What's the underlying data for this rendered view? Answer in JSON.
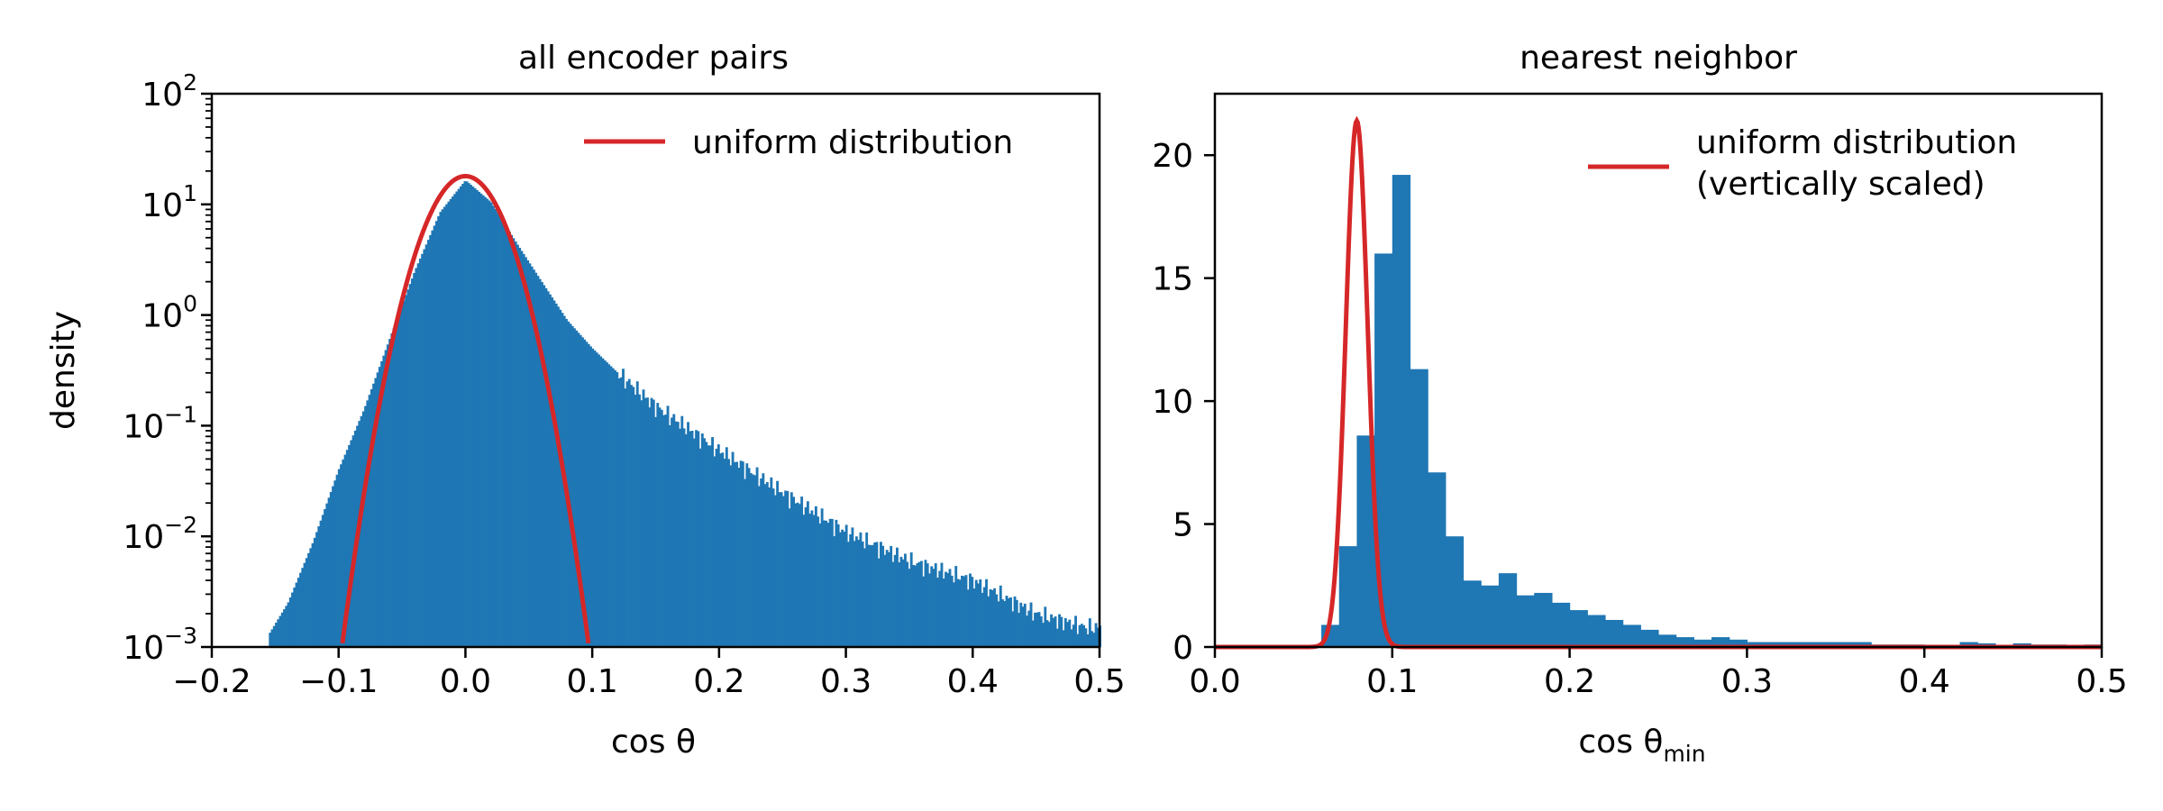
{
  "chart_data": [
    {
      "type": "bar",
      "title": "all encoder pairs",
      "xlabel": "cos θ",
      "ylabel": "density",
      "xlim": [
        -0.2,
        0.5
      ],
      "ylim": [
        0.001,
        100
      ],
      "yscale": "log",
      "x_ticks": [
        "−0.2",
        "−0.1",
        "0.0",
        "0.1",
        "0.2",
        "0.3",
        "0.4",
        "0.5"
      ],
      "y_ticks": [
        {
          "base": "10",
          "exp": "−3"
        },
        {
          "base": "10",
          "exp": "−2"
        },
        {
          "base": "10",
          "exp": "−1"
        },
        {
          "base": "10",
          "exp": "0"
        },
        {
          "base": "10",
          "exp": "1"
        },
        {
          "base": "10",
          "exp": "2"
        }
      ],
      "histogram": {
        "name": "",
        "color": "#1f77b4",
        "x": [
          -0.155,
          -0.14,
          -0.12,
          -0.1,
          -0.08,
          -0.06,
          -0.04,
          -0.02,
          0.0,
          0.02,
          0.04,
          0.06,
          0.08,
          0.1,
          0.12,
          0.15,
          0.2,
          0.25,
          0.3,
          0.35,
          0.4,
          0.45,
          0.49
        ],
        "density": [
          0.0013,
          0.0025,
          0.009,
          0.04,
          0.14,
          0.6,
          2.5,
          8.5,
          16.5,
          10.5,
          4.5,
          2.0,
          0.9,
          0.5,
          0.3,
          0.15,
          0.06,
          0.025,
          0.011,
          0.006,
          0.004,
          0.002,
          0.0015
        ]
      },
      "curve": {
        "name": "uniform distribution",
        "color": "#d62728",
        "peak": 18,
        "center": 0.0,
        "sigma": 0.022
      },
      "legend": {
        "loc": "upper right",
        "entries": [
          "uniform distribution"
        ]
      }
    },
    {
      "type": "bar",
      "title": "nearest neighbor",
      "xlabel": "cos θ",
      "xlabel_sub": "min",
      "ylabel": "",
      "xlim": [
        0.0,
        0.5
      ],
      "ylim": [
        0,
        22.5
      ],
      "x_ticks": [
        "0.0",
        "0.1",
        "0.2",
        "0.3",
        "0.4",
        "0.5"
      ],
      "y_ticks": [
        "0",
        "5",
        "10",
        "15",
        "20"
      ],
      "y_tick_values": [
        0,
        5,
        10,
        15,
        20
      ],
      "histogram": {
        "name": "",
        "color": "#1f77b4",
        "bin_start": 0.06,
        "bin_width": 0.01,
        "values": [
          0.9,
          4.1,
          8.6,
          16.0,
          19.2,
          11.3,
          7.1,
          4.5,
          2.7,
          2.5,
          3.0,
          2.1,
          2.2,
          1.8,
          1.5,
          1.3,
          1.1,
          0.9,
          0.7,
          0.5,
          0.4,
          0.3,
          0.4,
          0.3,
          0.2,
          0.2,
          0.2,
          0.2,
          0.2,
          0.2,
          0.2,
          0.1,
          0.1,
          0.1,
          0.05,
          0.05,
          0.2,
          0.15,
          0.05,
          0.15,
          0.1,
          0.1,
          0.05,
          0.1
        ]
      },
      "curve": {
        "name": "uniform distribution (vertically scaled)",
        "color": "#d62728",
        "peak": 21.4,
        "center": 0.08,
        "sigma": 0.0062
      },
      "legend": {
        "loc": "upper right",
        "entries": [
          "uniform distribution",
          "(vertically scaled)"
        ]
      }
    }
  ]
}
